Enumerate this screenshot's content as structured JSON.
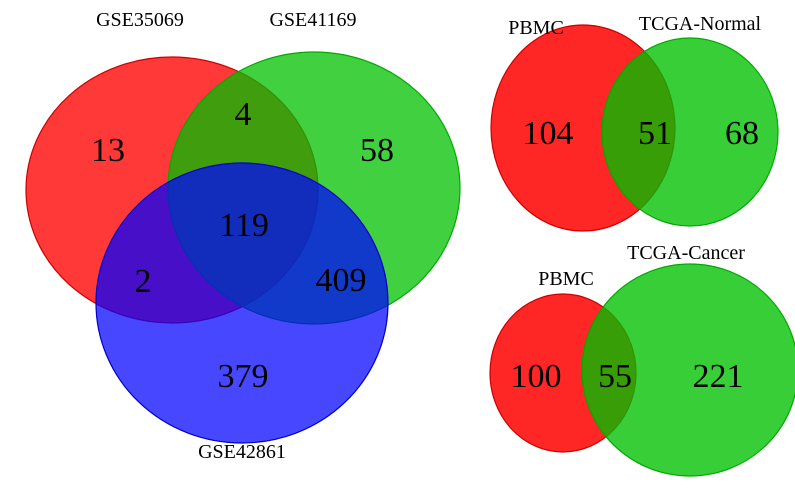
{
  "venn_three": {
    "sets": [
      {
        "name": "GSE35069",
        "color": "#ff0000"
      },
      {
        "name": "GSE41169",
        "color": "#00cc00"
      },
      {
        "name": "GSE42861",
        "color": "#0000ff"
      }
    ],
    "regions": {
      "gse35069_only": "13",
      "gse35069_gse41169": "4",
      "gse41169_only": "58",
      "all_three": "119",
      "gse35069_gse42861": "2",
      "gse41169_gse42861": "409",
      "gse42861_only": "379"
    }
  },
  "venn_normal": {
    "sets": [
      {
        "name": "PBMC",
        "color": "#ff0000"
      },
      {
        "name": "TCGA-Normal",
        "color": "#00cc00"
      }
    ],
    "regions": {
      "left_only": "104",
      "overlap": "51",
      "right_only": "68"
    }
  },
  "venn_cancer": {
    "sets": [
      {
        "name": "PBMC",
        "color": "#ff0000"
      },
      {
        "name": "TCGA-Cancer",
        "color": "#00cc00"
      }
    ],
    "regions": {
      "left_only": "100",
      "overlap": "55",
      "right_only": "221"
    }
  }
}
